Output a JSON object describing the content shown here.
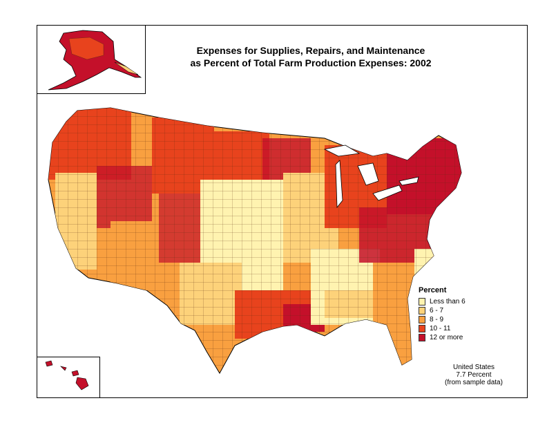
{
  "title": {
    "line1": "Expenses for Supplies, Repairs, and Maintenance",
    "line2": "as Percent of Total Farm Production Expenses:  2002"
  },
  "legend": {
    "title": "Percent",
    "items": [
      {
        "label": "Less than 6",
        "color": "#fff3b0"
      },
      {
        "label": "6 - 7",
        "color": "#fdd27a"
      },
      {
        "label": "8 - 9",
        "color": "#f9a040"
      },
      {
        "label": "10 - 11",
        "color": "#e8431d"
      },
      {
        "label": "12 or more",
        "color": "#c4102a"
      }
    ]
  },
  "note": {
    "line1": "United States",
    "line2": "7.7 Percent",
    "line3": "(from sample data)"
  },
  "colors": {
    "border": "#000000",
    "county_line": "#5a2a10"
  }
}
